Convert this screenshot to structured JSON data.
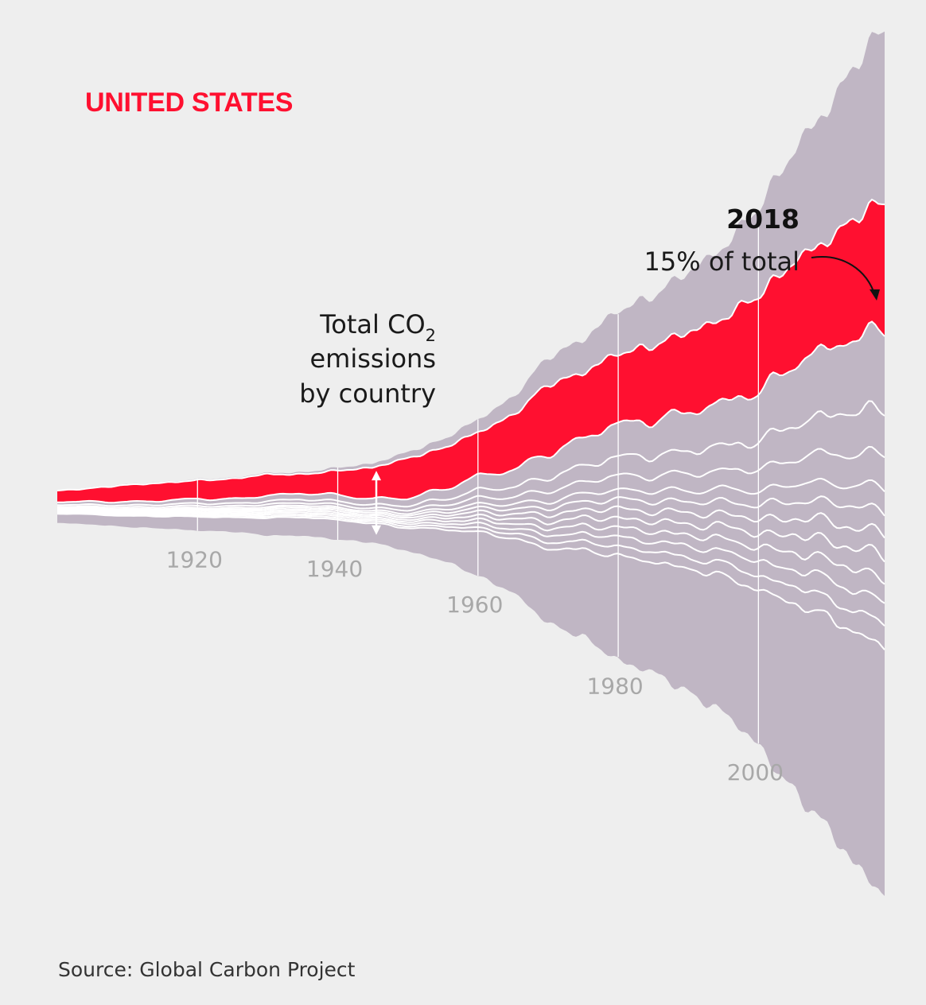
{
  "colors": {
    "background": "#eeeeee",
    "highlight": "#ff1030",
    "others": "#c0b6c4",
    "divider": "#ffffff",
    "tick_label": "#a8a8a8"
  },
  "chart_data": {
    "type": "area",
    "layout": "streamgraph",
    "title": "UNITED STATES",
    "subtitle": "",
    "xlabel": "",
    "ylabel": "",
    "x_ticks": [
      "1920",
      "1940",
      "1960",
      "1980",
      "2000"
    ],
    "x_range": [
      1900,
      2018
    ],
    "highlight_series": "United States",
    "annotations": {
      "total_label_lines": [
        "Total CO",
        "2",
        "emissions",
        "by country"
      ],
      "year_label": "2018",
      "share_label": "15% of total"
    },
    "source": "Source: Global Carbon Project",
    "years": [
      1900,
      1905,
      1910,
      1915,
      1920,
      1925,
      1930,
      1935,
      1940,
      1945,
      1950,
      1955,
      1960,
      1965,
      1970,
      1975,
      1980,
      1985,
      1990,
      1995,
      2000,
      2005,
      2010,
      2015,
      2018
    ],
    "total": [
      3.5,
      4.0,
      4.6,
      5.0,
      5.5,
      5.8,
      6.7,
      6.8,
      7.7,
      8.5,
      10.6,
      13.0,
      16.7,
      21.0,
      28.5,
      32.0,
      37.5,
      40.5,
      45.0,
      50.0,
      57.5,
      69.0,
      77.0,
      89.0,
      92.0
    ],
    "us_share": [
      0.34,
      0.36,
      0.4,
      0.38,
      0.36,
      0.38,
      0.34,
      0.3,
      0.34,
      0.4,
      0.4,
      0.34,
      0.28,
      0.28,
      0.26,
      0.22,
      0.2,
      0.2,
      0.19,
      0.18,
      0.18,
      0.16,
      0.15,
      0.15,
      0.15
    ]
  }
}
